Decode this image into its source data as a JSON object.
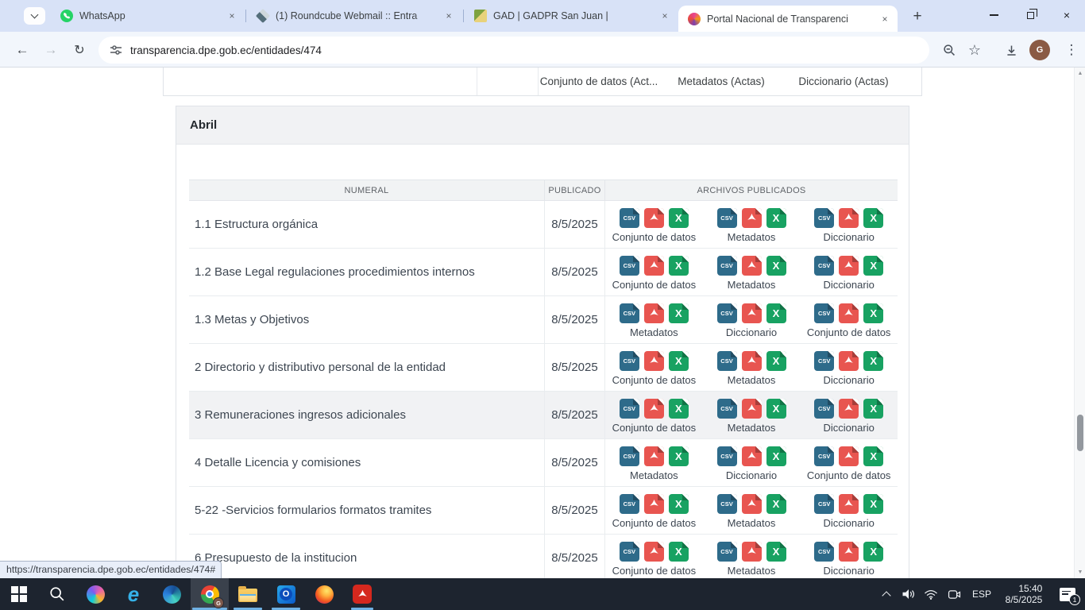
{
  "browser": {
    "tabs": [
      {
        "title": "WhatsApp",
        "icon": "whatsapp-icon"
      },
      {
        "title": "(1) Roundcube Webmail :: Entra",
        "icon": "roundcube-icon"
      },
      {
        "title": "GAD | GADPR San Juan |",
        "icon": "gad-icon"
      },
      {
        "title": "Portal Nacional de Transparenci",
        "icon": "portal-icon"
      }
    ],
    "url": "transparencia.dpe.gob.ec/entidades/474",
    "profile_initial": "G"
  },
  "glyphs": {
    "close": "×",
    "plus": "+",
    "back": "←",
    "forward": "→",
    "reload": "↻",
    "star": "☆",
    "menu": "⋮",
    "scroll_up": "▲",
    "scroll_down": "▼"
  },
  "page": {
    "prev_table_labels": [
      "Conjunto de datos (Act...",
      "Metadatos (Actas)",
      "Diccionario (Actas)"
    ],
    "section_title": "Abril",
    "table": {
      "headers": [
        "NUMERAL",
        "PUBLICADO",
        "ARCHIVOS PUBLICADOS"
      ],
      "rows": [
        {
          "numeral": "1.1 Estructura orgánica",
          "published": "8/5/2025",
          "files": [
            "Conjunto de datos",
            "Metadatos",
            "Diccionario"
          ],
          "highlighted": false
        },
        {
          "numeral": "1.2 Base Legal regulaciones procedimientos internos",
          "published": "8/5/2025",
          "files": [
            "Conjunto de datos",
            "Metadatos",
            "Diccionario"
          ],
          "highlighted": false
        },
        {
          "numeral": "1.3 Metas y Objetivos",
          "published": "8/5/2025",
          "files": [
            "Metadatos",
            "Diccionario",
            "Conjunto de datos"
          ],
          "highlighted": false
        },
        {
          "numeral": "2 Directorio y distributivo personal de la entidad",
          "published": "8/5/2025",
          "files": [
            "Conjunto de datos",
            "Metadatos",
            "Diccionario"
          ],
          "highlighted": false
        },
        {
          "numeral": "3 Remuneraciones ingresos adicionales",
          "published": "8/5/2025",
          "files": [
            "Conjunto de datos",
            "Metadatos",
            "Diccionario"
          ],
          "highlighted": true
        },
        {
          "numeral": "4 Detalle Licencia y comisiones",
          "published": "8/5/2025",
          "files": [
            "Metadatos",
            "Diccionario",
            "Conjunto de datos"
          ],
          "highlighted": false
        },
        {
          "numeral": "5-22 -Servicios formularios formatos tramites",
          "published": "8/5/2025",
          "files": [
            "Conjunto de datos",
            "Metadatos",
            "Diccionario"
          ],
          "highlighted": false
        },
        {
          "numeral": "6 Presupuesto de la institucion",
          "published": "8/5/2025",
          "files": [
            "Conjunto de datos",
            "Metadatos",
            "Diccionario"
          ],
          "highlighted": false
        }
      ]
    },
    "file_icon_types": [
      "csv",
      "pdf",
      "xls"
    ],
    "file_icon_text": {
      "csv": "CSV",
      "xls": "X"
    },
    "file_icon_colors": {
      "csv": "#2e6b8a",
      "pdf": "#e85550",
      "xls": "#18a262"
    },
    "status_url": "https://transparencia.dpe.gob.ec/entidades/474#"
  },
  "taskbar": {
    "language": "ESP",
    "time": "15:40",
    "date": "8/5/2025",
    "notification_count": "1"
  }
}
